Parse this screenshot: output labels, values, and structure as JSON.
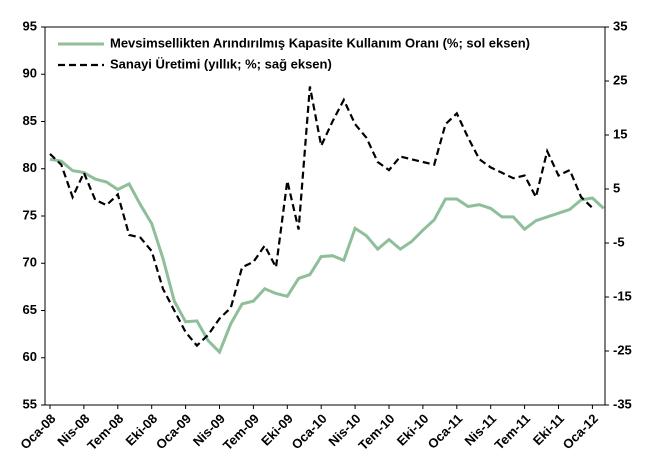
{
  "chart_data": {
    "type": "line",
    "categories": [
      "Oca-08",
      null,
      null,
      "Nis-08",
      null,
      null,
      "Tem-08",
      null,
      null,
      "Eki-08",
      null,
      null,
      "Oca-09",
      null,
      null,
      "Nis-09",
      null,
      null,
      "Tem-09",
      null,
      null,
      "Eki-09",
      null,
      null,
      "Oca-10",
      null,
      null,
      "Nis-10",
      null,
      null,
      "Tem-10",
      null,
      null,
      "Eki-10",
      null,
      null,
      "Oca-11",
      null,
      null,
      "Nis-11",
      null,
      null,
      "Tem-11",
      null,
      null,
      "Eki-11",
      null,
      null,
      "Oca-12",
      null
    ],
    "series": [
      {
        "name": "Mevsimsellikten Arındırılmış Kapasite Kullanım Oranı (%; sol eksen)",
        "color": "#8fbf9a",
        "dash": "solid",
        "axis": "y",
        "values": [
          81.0,
          80.8,
          79.8,
          79.6,
          78.9,
          78.6,
          77.8,
          78.4,
          76.2,
          74.2,
          70.5,
          66.0,
          63.8,
          63.9,
          61.8,
          60.6,
          63.6,
          65.7,
          66.0,
          67.3,
          66.8,
          66.5,
          68.4,
          68.8,
          70.7,
          70.8,
          70.3,
          73.7,
          72.9,
          71.5,
          72.5,
          71.5,
          72.3,
          73.5,
          74.6,
          76.8,
          76.8,
          76.0,
          76.2,
          75.8,
          74.9,
          74.9,
          73.6,
          74.5,
          74.9,
          75.3,
          75.7,
          76.7,
          76.9,
          75.8
        ]
      },
      {
        "name": "Sanayi Üretimi (yıllık; %; sağ eksen)",
        "color": "#000000",
        "dash": "dashed",
        "axis": "y2",
        "values": [
          11.5,
          9.5,
          3.5,
          8,
          3,
          2,
          4,
          -3.5,
          -4,
          -6.5,
          -13.5,
          -17.5,
          -21.5,
          -24,
          -22,
          -19,
          -17,
          -9.5,
          -8.5,
          -5.5,
          -9.5,
          6.5,
          -2.5,
          24,
          13,
          17.5,
          21.5,
          17,
          14.5,
          10,
          8.5,
          11,
          10.5,
          10,
          9.5,
          17,
          19,
          14.5,
          10.5,
          9,
          8,
          7,
          7.5,
          3.5,
          12,
          7.5,
          8.5,
          3.5,
          1.5,
          null
        ]
      }
    ],
    "ylim": [
      55,
      95
    ],
    "yticks": [
      55,
      60,
      65,
      70,
      75,
      80,
      85,
      90,
      95
    ],
    "y2lim": [
      -35,
      35
    ],
    "y2ticks": [
      -35,
      -25,
      -15,
      -5,
      5,
      15,
      25,
      35
    ],
    "legend": "upper left",
    "grid": false
  }
}
